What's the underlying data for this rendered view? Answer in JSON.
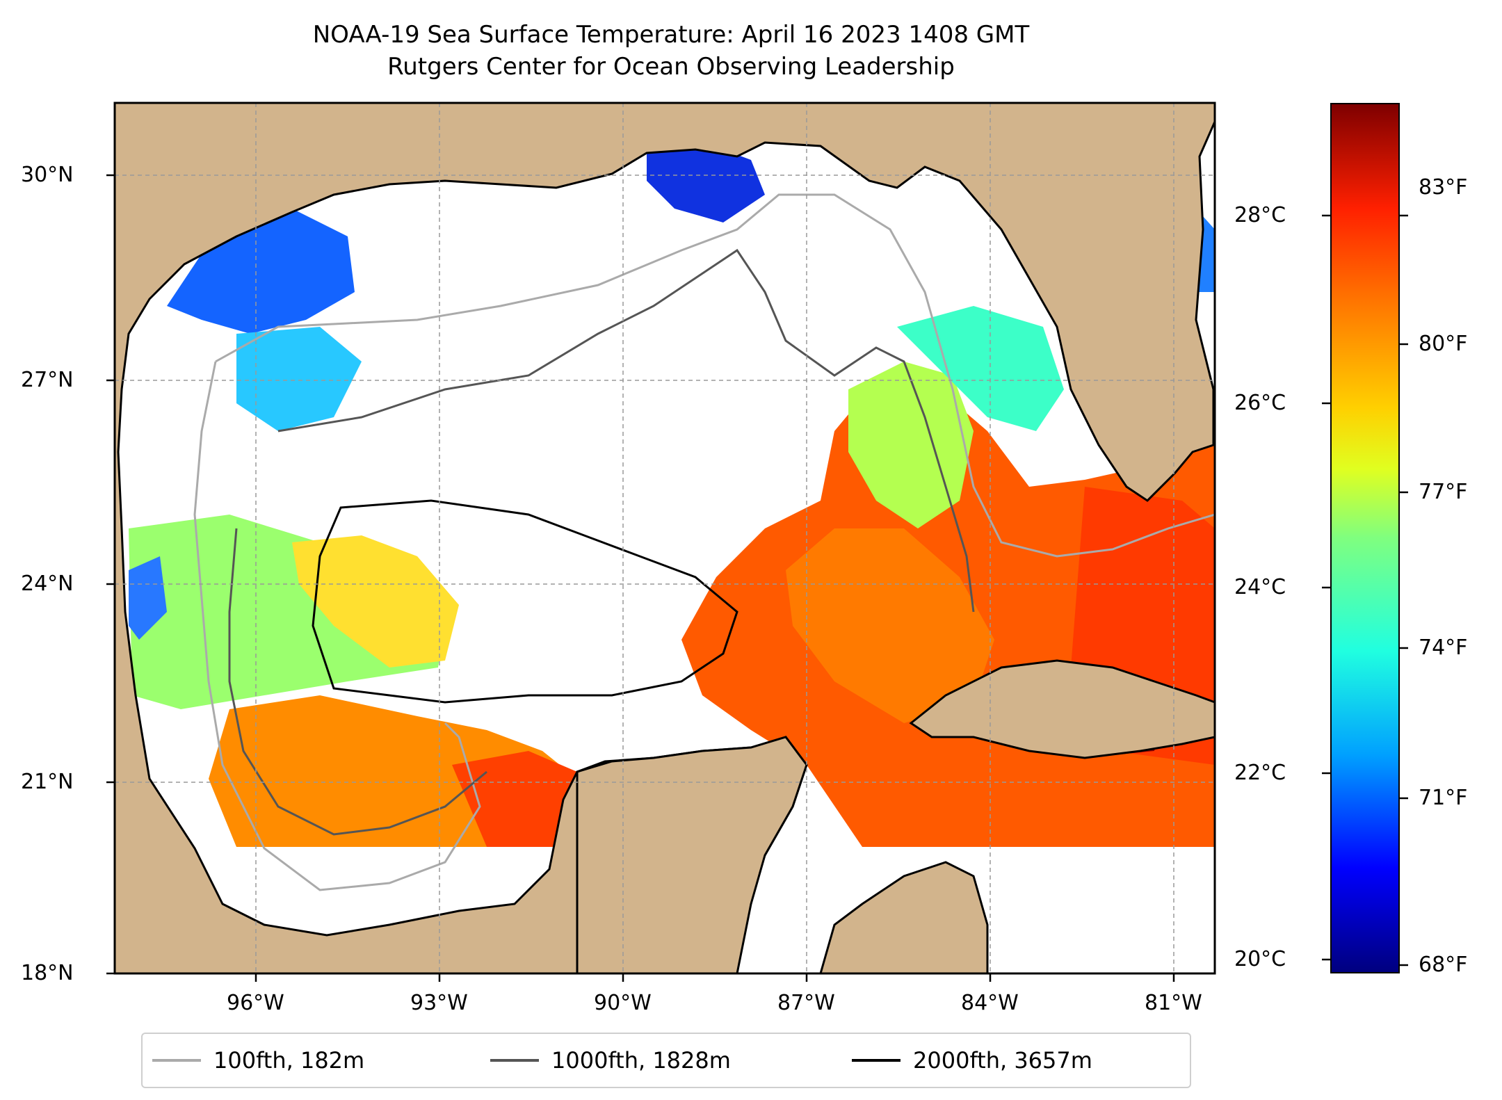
{
  "title": {
    "line1": "NOAA-19 Sea Surface Temperature: April 16 2023 1408 GMT",
    "line2": "Rutgers Center for Ocean Observing Leadership"
  },
  "map": {
    "lon_range": [
      -98.3,
      -80.3
    ],
    "lat_range": [
      18.0,
      31.0
    ],
    "lat_ticks": [
      {
        "value": 30,
        "label": "30°N"
      },
      {
        "value": 27,
        "label": "27°N"
      },
      {
        "value": 24,
        "label": "24°N"
      },
      {
        "value": 21,
        "label": "21°N"
      },
      {
        "value": 18,
        "label": "18°N"
      }
    ],
    "lon_ticks": [
      {
        "value": -96,
        "label": "96°W"
      },
      {
        "value": -93,
        "label": "93°W"
      },
      {
        "value": -90,
        "label": "90°W"
      },
      {
        "value": -87,
        "label": "87°W"
      },
      {
        "value": -84,
        "label": "84°W"
      },
      {
        "value": -81,
        "label": "81°W"
      }
    ],
    "gridlines": true,
    "land_color": "#d2b48c",
    "no_data_color": "#ffffff"
  },
  "legend": {
    "placement": "bottom-center",
    "items": [
      {
        "label": "100fth, 182m",
        "color": "#aaaaaa"
      },
      {
        "label": "1000fth, 1828m",
        "color": "#555555"
      },
      {
        "label": "2000fth, 3657m",
        "color": "#000000"
      }
    ]
  },
  "colorbar": {
    "colormap": "jet",
    "celsius_ticks": [
      {
        "value": 28,
        "label": "28°C"
      },
      {
        "value": 26,
        "label": "26°C"
      },
      {
        "value": 24,
        "label": "24°C"
      },
      {
        "value": 22,
        "label": "22°C"
      },
      {
        "value": 20,
        "label": "20°C"
      }
    ],
    "fahrenheit_ticks": [
      {
        "value": 83,
        "label": "83°F"
      },
      {
        "value": 80,
        "label": "80°F"
      },
      {
        "value": 77,
        "label": "77°F"
      },
      {
        "value": 74,
        "label": "74°F"
      },
      {
        "value": 71,
        "label": "71°F"
      },
      {
        "value": 68,
        "label": "68°F"
      }
    ]
  }
}
